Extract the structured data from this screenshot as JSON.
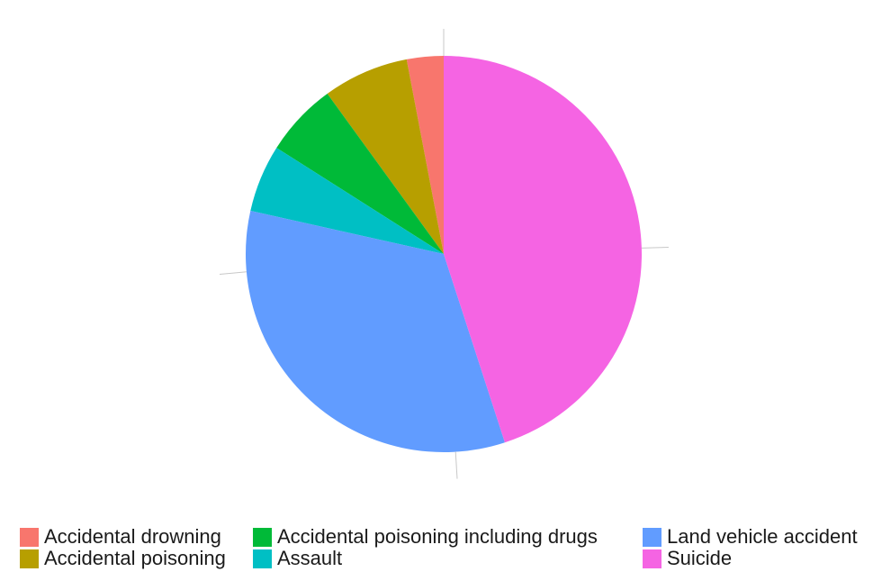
{
  "chart_data": {
    "type": "pie",
    "title": "",
    "legend_position": "bottom",
    "slices": [
      {
        "label": "Accidental drowning",
        "value": 3,
        "color": "#F8766D"
      },
      {
        "label": "Accidental poisoning",
        "value": 7,
        "color": "#B79F00"
      },
      {
        "label": "Accidental poisoning including drugs",
        "value": 6,
        "color": "#00BA38"
      },
      {
        "label": "Assault",
        "value": 5.5,
        "color": "#00BFC4"
      },
      {
        "label": "Land vehicle accident",
        "value": 33.5,
        "color": "#619CFF"
      },
      {
        "label": "Suicide",
        "value": 45,
        "color": "#F564E3"
      }
    ]
  }
}
